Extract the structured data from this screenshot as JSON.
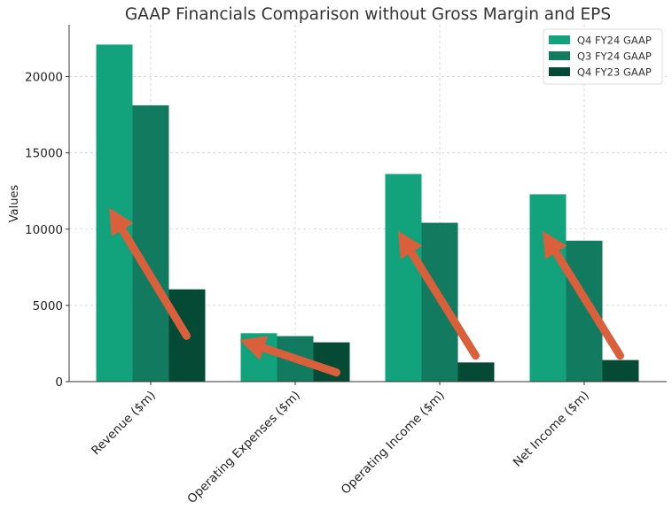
{
  "chart_data": {
    "type": "bar",
    "title": "GAAP Financials Comparison without Gross Margin and EPS",
    "xlabel": "",
    "ylabel": "Values",
    "ylim": [
      0,
      23400
    ],
    "yticks": [
      0,
      5000,
      10000,
      15000,
      20000
    ],
    "grid": true,
    "legend_position": "top-right",
    "categories": [
      "Revenue ($m)",
      "Operating Expenses ($m)",
      "Operating Income ($m)",
      "Net Income ($m)"
    ],
    "series": [
      {
        "name": "Q4 FY24 GAAP",
        "color": "#12a37d",
        "values": [
          22103,
          3175,
          13615,
          12285
        ]
      },
      {
        "name": "Q3 FY24 GAAP",
        "color": "#127a5e",
        "values": [
          18120,
          2983,
          10417,
          9243
        ]
      },
      {
        "name": "Q4 FY23 GAAP",
        "color": "#044a35",
        "values": [
          6051,
          2576,
          1257,
          1414
        ]
      }
    ],
    "annotations": {
      "type": "arrows",
      "color": "#d9603b",
      "arrows": [
        {
          "category": "Revenue ($m)",
          "from_value": 3000,
          "to_value": 10500
        },
        {
          "category": "Operating Expenses ($m)",
          "from_value": 600,
          "to_value": 2400
        },
        {
          "category": "Operating Income ($m)",
          "from_value": 1700,
          "to_value": 9000
        },
        {
          "category": "Net Income ($m)",
          "from_value": 1700,
          "to_value": 9000
        }
      ]
    }
  }
}
